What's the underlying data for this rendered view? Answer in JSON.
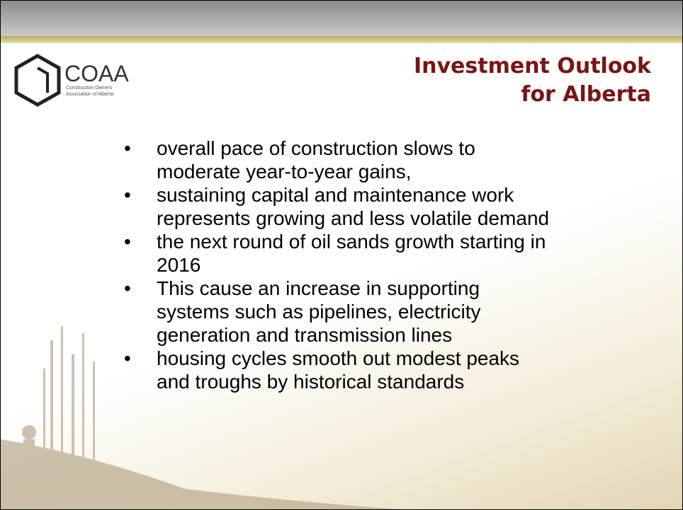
{
  "logo": {
    "name": "COAA",
    "subtitle": [
      "Construction Owners",
      "Association of Alberta"
    ]
  },
  "title": [
    "Investment Outlook",
    "for Alberta"
  ],
  "bullets": [
    [
      "overall pace of construction slows to",
      "moderate year-to-year gains,"
    ],
    [
      "sustaining capital and maintenance work",
      "represents growing and less volatile demand"
    ],
    [
      "the next round of oil sands growth starting in",
      "2016"
    ],
    [
      "This cause an increase in supporting",
      "systems such as pipelines, electricity",
      "generation and transmission lines"
    ],
    [
      "housing cycles smooth out modest peaks",
      "and troughs by historical standards"
    ]
  ]
}
